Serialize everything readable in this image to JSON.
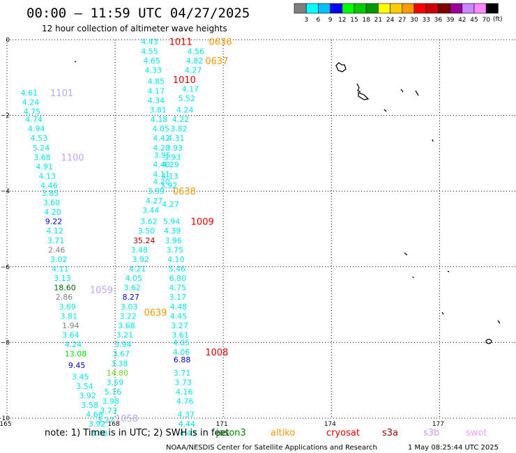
{
  "header": {
    "title": "00:00 — 11:59 UTC 04/27/2025",
    "subtitle": "12 hour collection of altimeter wave heights"
  },
  "colorbar": {
    "labels": [
      "3",
      "6",
      "9",
      "12",
      "15",
      "18",
      "21",
      "24",
      "27",
      "30",
      "33",
      "36",
      "39",
      "42",
      "45",
      "70"
    ],
    "unit": "(ft)",
    "colors": [
      "#808080",
      "#00ffff",
      "#00bfff",
      "#0000ff",
      "#00ff00",
      "#00cc00",
      "#009900",
      "#ffff00",
      "#ffcc00",
      "#ff9900",
      "#ff0000",
      "#cc0000",
      "#800000",
      "#990099",
      "#cc88ff",
      "#ff88ff",
      "#000000"
    ]
  },
  "axes": {
    "y_ticks": [
      {
        "label": "0",
        "lat": 0
      },
      {
        "label": "−2",
        "lat": -2
      },
      {
        "label": "−4",
        "lat": -4
      },
      {
        "label": "−6",
        "lat": -6
      },
      {
        "label": "−8",
        "lat": -8
      },
      {
        "label": "−10",
        "lat": -10
      }
    ],
    "x_ticks": [
      {
        "label": "165",
        "lon": 165
      },
      {
        "label": "168",
        "lon": 168
      },
      {
        "label": "171",
        "lon": 171
      },
      {
        "label": "174",
        "lon": 174
      },
      {
        "label": "177",
        "lon": 177
      }
    ],
    "lon_range": [
      165,
      179.4
    ],
    "lat_range": [
      -10,
      0
    ]
  },
  "footer": {
    "note": "note:  1) Time is in UTC; 2) SWH is in feet",
    "satellites": [
      {
        "name": "jason3",
        "color": "#008800"
      },
      {
        "name": "altiko",
        "color": "#ff9900"
      },
      {
        "name": "cryosat",
        "color": "#dd0000"
      },
      {
        "name": "s3a",
        "color": "#990000"
      },
      {
        "name": "s3b",
        "color": "#cc99ff"
      },
      {
        "name": "swot",
        "color": "#ff99ff"
      }
    ],
    "credit": "NOAA/NESDIS Center for Satellite Applications and Research",
    "timestamp": "1 May 08:25:44 UTC 2025"
  },
  "track_labels": [
    {
      "text": "1101",
      "lon": 166.2,
      "lat": -1.4,
      "color": "#b9a6ff"
    },
    {
      "text": "1100",
      "lon": 166.5,
      "lat": -3.1,
      "color": "#b9a6ff"
    },
    {
      "text": "1059",
      "lon": 167.3,
      "lat": -6.6,
      "color": "#b9a6ff"
    },
    {
      "text": "1058",
      "lon": 168.0,
      "lat": -10.0,
      "color": "#b9a6ff"
    },
    {
      "text": "1011",
      "lon": 169.5,
      "lat": -0.05,
      "color": "#dd0000"
    },
    {
      "text": "1010",
      "lon": 169.6,
      "lat": -1.05,
      "color": "#dd0000"
    },
    {
      "text": "1009",
      "lon": 170.1,
      "lat": -4.8,
      "color": "#dd0000"
    },
    {
      "text": "1008",
      "lon": 170.5,
      "lat": -8.25,
      "color": "#dd0000"
    },
    {
      "text": "0636",
      "lon": 170.6,
      "lat": -0.05,
      "color": "#ff9900"
    },
    {
      "text": "0637",
      "lon": 170.5,
      "lat": -0.55,
      "color": "#ff9900"
    },
    {
      "text": "0638",
      "lon": 169.6,
      "lat": -4.0,
      "color": "#ff9900"
    },
    {
      "text": "0639",
      "lon": 168.8,
      "lat": -7.2,
      "color": "#ff9900"
    }
  ],
  "swh_observations": [
    {
      "v": "4.61",
      "lon": 165.38,
      "lat": -1.4,
      "c": "#00e5ee"
    },
    {
      "v": "4.24",
      "lon": 165.42,
      "lat": -1.65,
      "c": "#00e5ee"
    },
    {
      "v": "4.75",
      "lon": 165.46,
      "lat": -1.9,
      "c": "#00e5ee"
    },
    {
      "v": "4.74",
      "lon": 165.51,
      "lat": -2.1,
      "c": "#00e5ee"
    },
    {
      "v": "4.94",
      "lon": 165.58,
      "lat": -2.35,
      "c": "#00e5ee"
    },
    {
      "v": "4.53",
      "lon": 165.65,
      "lat": -2.6,
      "c": "#00e5ee"
    },
    {
      "v": "5.24",
      "lon": 165.71,
      "lat": -2.85,
      "c": "#00e5ee"
    },
    {
      "v": "3.68",
      "lon": 165.74,
      "lat": -3.1,
      "c": "#00e5ee"
    },
    {
      "v": "4.91",
      "lon": 165.8,
      "lat": -3.35,
      "c": "#00e5ee"
    },
    {
      "v": "4.13",
      "lon": 165.88,
      "lat": -3.6,
      "c": "#00e5ee"
    },
    {
      "v": "4.46",
      "lon": 165.93,
      "lat": -3.85,
      "c": "#00e5ee"
    },
    {
      "v": "3.85",
      "lon": 165.96,
      "lat": -4.05,
      "c": "#00e5ee"
    },
    {
      "v": "3.60",
      "lon": 166.0,
      "lat": -4.3,
      "c": "#00e5ee"
    },
    {
      "v": "4.20",
      "lon": 166.03,
      "lat": -4.55,
      "c": "#00e5ee"
    },
    {
      "v": "9.22",
      "lon": 166.06,
      "lat": -4.8,
      "c": "#0000cc"
    },
    {
      "v": "4.12",
      "lon": 166.09,
      "lat": -5.05,
      "c": "#00e5ee"
    },
    {
      "v": "3.71",
      "lon": 166.12,
      "lat": -5.3,
      "c": "#00e5ee"
    },
    {
      "v": "2.46",
      "lon": 166.14,
      "lat": -5.55,
      "c": "#808080"
    },
    {
      "v": "3.02",
      "lon": 166.2,
      "lat": -5.8,
      "c": "#00e5ee"
    },
    {
      "v": "4.11",
      "lon": 166.24,
      "lat": -6.05,
      "c": "#00e5ee"
    },
    {
      "v": "3.13",
      "lon": 166.3,
      "lat": -6.3,
      "c": "#00e5ee"
    },
    {
      "v": "18.60",
      "lon": 166.3,
      "lat": -6.55,
      "c": "#006600"
    },
    {
      "v": "2.86",
      "lon": 166.35,
      "lat": -6.8,
      "c": "#808080"
    },
    {
      "v": "3.69",
      "lon": 166.44,
      "lat": -7.05,
      "c": "#00e5ee"
    },
    {
      "v": "3.81",
      "lon": 166.48,
      "lat": -7.3,
      "c": "#00e5ee"
    },
    {
      "v": "1.94",
      "lon": 166.53,
      "lat": -7.55,
      "c": "#808080"
    },
    {
      "v": "3.64",
      "lon": 166.53,
      "lat": -7.8,
      "c": "#00e5ee"
    },
    {
      "v": "4.24",
      "lon": 166.6,
      "lat": -8.05,
      "c": "#00e5ee"
    },
    {
      "v": "13.08",
      "lon": 166.6,
      "lat": -8.3,
      "c": "#00dd00"
    },
    {
      "v": "9.45",
      "lon": 166.7,
      "lat": -8.6,
      "c": "#0000cc"
    },
    {
      "v": "3.45",
      "lon": 166.8,
      "lat": -8.9,
      "c": "#00e5ee"
    },
    {
      "v": "3.54",
      "lon": 166.92,
      "lat": -9.15,
      "c": "#00e5ee"
    },
    {
      "v": "3.92",
      "lon": 167.0,
      "lat": -9.4,
      "c": "#00e5ee"
    },
    {
      "v": "3.58",
      "lon": 167.06,
      "lat": -9.65,
      "c": "#00e5ee"
    },
    {
      "v": "4.66",
      "lon": 167.19,
      "lat": -9.9,
      "c": "#00e5ee"
    },
    {
      "v": "3.92",
      "lon": 167.26,
      "lat": -10.15,
      "c": "#00e5ee"
    },
    {
      "v": "3.48",
      "lon": 167.32,
      "lat": -10.4,
      "c": "#00e5ee"
    },
    {
      "v": "4.43",
      "lon": 168.72,
      "lat": -0.05,
      "c": "#00e5ee"
    },
    {
      "v": "4.55",
      "lon": 168.72,
      "lat": -0.3,
      "c": "#00e5ee"
    },
    {
      "v": "4.65",
      "lon": 168.78,
      "lat": -0.55,
      "c": "#00e5ee"
    },
    {
      "v": "4.33",
      "lon": 168.82,
      "lat": -0.8,
      "c": "#00e5ee"
    },
    {
      "v": "4.85",
      "lon": 168.9,
      "lat": -1.1,
      "c": "#00e5ee"
    },
    {
      "v": "4.17",
      "lon": 168.9,
      "lat": -1.35,
      "c": "#00e5ee"
    },
    {
      "v": "4.34",
      "lon": 168.9,
      "lat": -1.6,
      "c": "#00e5ee"
    },
    {
      "v": "3.81",
      "lon": 168.95,
      "lat": -1.85,
      "c": "#00e5ee"
    },
    {
      "v": "4.18",
      "lon": 168.98,
      "lat": -2.1,
      "c": "#00e5ee"
    },
    {
      "v": "4.05",
      "lon": 169.03,
      "lat": -2.35,
      "c": "#00e5ee"
    },
    {
      "v": "4.42",
      "lon": 169.05,
      "lat": -2.6,
      "c": "#00e5ee"
    },
    {
      "v": "4.20",
      "lon": 169.05,
      "lat": -2.85,
      "c": "#00e5ee"
    },
    {
      "v": "3.95",
      "lon": 169.07,
      "lat": -3.05,
      "c": "#00e5ee"
    },
    {
      "v": "4.40",
      "lon": 169.05,
      "lat": -3.3,
      "c": "#00e5ee"
    },
    {
      "v": "4.11",
      "lon": 169.05,
      "lat": -3.55,
      "c": "#00e5ee"
    },
    {
      "v": "4.20",
      "lon": 169.05,
      "lat": -3.75,
      "c": "#00e5ee"
    },
    {
      "v": "3.99",
      "lon": 168.9,
      "lat": -4.0,
      "c": "#00e5ee"
    },
    {
      "v": "4.27",
      "lon": 168.85,
      "lat": -4.25,
      "c": "#00e5ee"
    },
    {
      "v": "3.44",
      "lon": 168.75,
      "lat": -4.5,
      "c": "#00e5ee"
    },
    {
      "v": "3.62",
      "lon": 168.7,
      "lat": -4.8,
      "c": "#00e5ee"
    },
    {
      "v": "3.50",
      "lon": 168.63,
      "lat": -5.05,
      "c": "#00e5ee"
    },
    {
      "v": "35.24",
      "lon": 168.5,
      "lat": -5.3,
      "c": "#990000"
    },
    {
      "v": "3.48",
      "lon": 168.43,
      "lat": -5.55,
      "c": "#00e5ee"
    },
    {
      "v": "3.92",
      "lon": 168.47,
      "lat": -5.8,
      "c": "#00e5ee"
    },
    {
      "v": "4.21",
      "lon": 168.38,
      "lat": -6.05,
      "c": "#00e5ee"
    },
    {
      "v": "4.05",
      "lon": 168.28,
      "lat": -6.3,
      "c": "#00e5ee"
    },
    {
      "v": "3.62",
      "lon": 168.24,
      "lat": -6.55,
      "c": "#00e5ee"
    },
    {
      "v": "8.27",
      "lon": 168.2,
      "lat": -6.8,
      "c": "#0000cc"
    },
    {
      "v": "3.03",
      "lon": 168.15,
      "lat": -7.05,
      "c": "#00e5ee"
    },
    {
      "v": "3.22",
      "lon": 168.12,
      "lat": -7.3,
      "c": "#00e5ee"
    },
    {
      "v": "3.68",
      "lon": 168.08,
      "lat": -7.55,
      "c": "#00e5ee"
    },
    {
      "v": "3.21",
      "lon": 168.03,
      "lat": -7.8,
      "c": "#00e5ee"
    },
    {
      "v": "3.94",
      "lon": 167.98,
      "lat": -8.05,
      "c": "#00e5ee"
    },
    {
      "v": "3.67",
      "lon": 167.93,
      "lat": -8.3,
      "c": "#00e5ee"
    },
    {
      "v": "3.38",
      "lon": 167.88,
      "lat": -8.55,
      "c": "#00e5ee"
    },
    {
      "v": "14.80",
      "lon": 167.76,
      "lat": -8.8,
      "c": "#66dd22"
    },
    {
      "v": "3.59",
      "lon": 167.76,
      "lat": -9.05,
      "c": "#00e5ee"
    },
    {
      "v": "5.16",
      "lon": 167.7,
      "lat": -9.3,
      "c": "#00e5ee"
    },
    {
      "v": "3.98",
      "lon": 167.64,
      "lat": -9.55,
      "c": "#00e5ee"
    },
    {
      "v": "3.73",
      "lon": 167.58,
      "lat": -9.8,
      "c": "#00e5ee"
    },
    {
      "v": "3.27",
      "lon": 167.5,
      "lat": -10.05,
      "c": "#00e5ee"
    },
    {
      "v": "4.56",
      "lon": 170.0,
      "lat": -0.3,
      "c": "#00e5ee"
    },
    {
      "v": "4.82",
      "lon": 169.97,
      "lat": -0.55,
      "c": "#00e5ee"
    },
    {
      "v": "4.27",
      "lon": 169.93,
      "lat": -0.8,
      "c": "#00e5ee"
    },
    {
      "v": "4.17",
      "lon": 169.85,
      "lat": -1.3,
      "c": "#00e5ee"
    },
    {
      "v": "5.52",
      "lon": 169.75,
      "lat": -1.55,
      "c": "#00e5ee"
    },
    {
      "v": "4.24",
      "lon": 169.7,
      "lat": -1.85,
      "c": "#00e5ee"
    },
    {
      "v": "4.22",
      "lon": 169.58,
      "lat": -2.1,
      "c": "#00e5ee"
    },
    {
      "v": "3.82",
      "lon": 169.53,
      "lat": -2.35,
      "c": "#00e5ee"
    },
    {
      "v": "4.31",
      "lon": 169.45,
      "lat": -2.6,
      "c": "#00e5ee"
    },
    {
      "v": "3.93",
      "lon": 169.4,
      "lat": -2.85,
      "c": "#00e5ee"
    },
    {
      "v": "3.93",
      "lon": 169.35,
      "lat": -3.1,
      "c": "#00e5ee"
    },
    {
      "v": "4.29",
      "lon": 169.3,
      "lat": -3.3,
      "c": "#00e5ee"
    },
    {
      "v": "4.13",
      "lon": 169.28,
      "lat": -3.6,
      "c": "#00e5ee"
    },
    {
      "v": "3.92",
      "lon": 169.25,
      "lat": -3.85,
      "c": "#00e5ee"
    },
    {
      "v": "4.27",
      "lon": 169.3,
      "lat": -4.35,
      "c": "#00e5ee"
    },
    {
      "v": "5.94",
      "lon": 169.33,
      "lat": -4.8,
      "c": "#00e5ee"
    },
    {
      "v": "4.39",
      "lon": 169.35,
      "lat": -5.05,
      "c": "#00e5ee"
    },
    {
      "v": "3.96",
      "lon": 169.38,
      "lat": -5.3,
      "c": "#00e5ee"
    },
    {
      "v": "3.75",
      "lon": 169.42,
      "lat": -5.55,
      "c": "#00e5ee"
    },
    {
      "v": "4.10",
      "lon": 169.45,
      "lat": -5.8,
      "c": "#00e5ee"
    },
    {
      "v": "5.46",
      "lon": 169.48,
      "lat": -6.05,
      "c": "#00e5ee"
    },
    {
      "v": "6.80",
      "lon": 169.5,
      "lat": -6.3,
      "c": "#00e5ee"
    },
    {
      "v": "4.75",
      "lon": 169.5,
      "lat": -6.55,
      "c": "#00e5ee"
    },
    {
      "v": "3.17",
      "lon": 169.5,
      "lat": -6.8,
      "c": "#00e5ee"
    },
    {
      "v": "4.48",
      "lon": 169.52,
      "lat": -7.05,
      "c": "#00e5ee"
    },
    {
      "v": "4.45",
      "lon": 169.52,
      "lat": -7.3,
      "c": "#00e5ee"
    },
    {
      "v": "3.27",
      "lon": 169.55,
      "lat": -7.55,
      "c": "#00e5ee"
    },
    {
      "v": "3.61",
      "lon": 169.57,
      "lat": -7.8,
      "c": "#00e5ee"
    },
    {
      "v": "4.05",
      "lon": 169.6,
      "lat": -8.0,
      "c": "#00e5ee"
    },
    {
      "v": "4.06",
      "lon": 169.6,
      "lat": -8.25,
      "c": "#00e5ee"
    },
    {
      "v": "6.88",
      "lon": 169.62,
      "lat": -8.45,
      "c": "#0000cc"
    },
    {
      "v": "3.71",
      "lon": 169.62,
      "lat": -8.8,
      "c": "#00e5ee"
    },
    {
      "v": "3.73",
      "lon": 169.65,
      "lat": -9.05,
      "c": "#00e5ee"
    },
    {
      "v": "4.16",
      "lon": 169.68,
      "lat": -9.3,
      "c": "#00e5ee"
    },
    {
      "v": "4.76",
      "lon": 169.7,
      "lat": -9.55,
      "c": "#00e5ee"
    },
    {
      "v": "4.37",
      "lon": 169.73,
      "lat": -9.9,
      "c": "#00e5ee"
    },
    {
      "v": "4.44",
      "lon": 169.75,
      "lat": -10.15,
      "c": "#00e5ee"
    },
    {
      "v": "4.43",
      "lon": 169.78,
      "lat": -10.4,
      "c": "#00e5ee"
    }
  ]
}
